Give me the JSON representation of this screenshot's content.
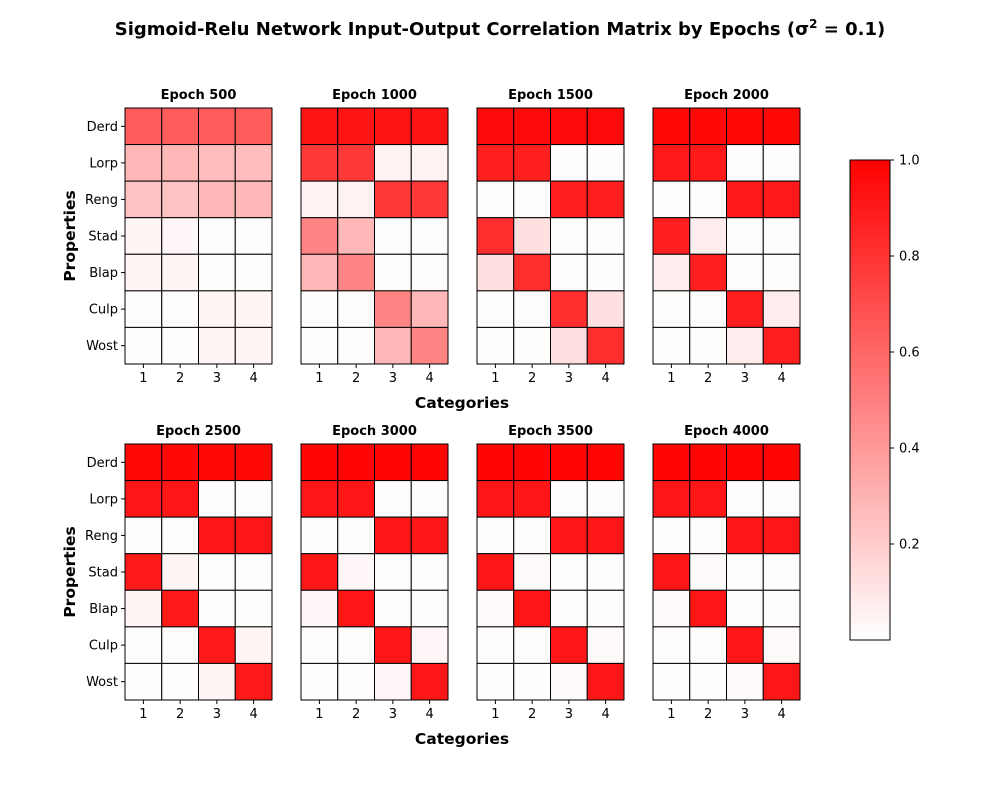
{
  "colors": {
    "low": "#ffffff",
    "high": "#ff0000",
    "grid": "#000000"
  },
  "chart_data": {
    "type": "heatmap",
    "title_main": "Sigmoid-Relu Network Input-Output Correlation Matrix by Epochs (σ",
    "title_sup": "2",
    "title_end": " = 0.1)",
    "xlabel": "Categories",
    "ylabel": "Properties",
    "x_categories": [
      "1",
      "2",
      "3",
      "4"
    ],
    "y_categories": [
      "Derd",
      "Lorp",
      "Reng",
      "Stad",
      "Blap",
      "Culp",
      "Wost"
    ],
    "colorbar": {
      "min": 0.0,
      "max": 1.0,
      "ticks": [
        "0.2",
        "0.4",
        "0.6",
        "0.8",
        "1.0"
      ],
      "tick_values": [
        0.2,
        0.4,
        0.6,
        0.8,
        1.0
      ]
    },
    "panels": [
      {
        "title": "Epoch 500",
        "values": [
          [
            0.64,
            0.64,
            0.64,
            0.64
          ],
          [
            0.28,
            0.28,
            0.26,
            0.26
          ],
          [
            0.24,
            0.24,
            0.28,
            0.28
          ],
          [
            0.04,
            0.03,
            0.01,
            0.01
          ],
          [
            0.04,
            0.04,
            0.01,
            0.01
          ],
          [
            0.01,
            0.01,
            0.04,
            0.04
          ],
          [
            0.01,
            0.01,
            0.04,
            0.04
          ]
        ]
      },
      {
        "title": "Epoch 1000",
        "values": [
          [
            0.92,
            0.92,
            0.92,
            0.92
          ],
          [
            0.78,
            0.78,
            0.05,
            0.05
          ],
          [
            0.05,
            0.05,
            0.78,
            0.78
          ],
          [
            0.48,
            0.28,
            0.01,
            0.01
          ],
          [
            0.28,
            0.48,
            0.01,
            0.01
          ],
          [
            0.01,
            0.01,
            0.48,
            0.28
          ],
          [
            0.01,
            0.01,
            0.28,
            0.48
          ]
        ]
      },
      {
        "title": "Epoch 1500",
        "values": [
          [
            0.96,
            0.96,
            0.96,
            0.96
          ],
          [
            0.88,
            0.88,
            0.01,
            0.01
          ],
          [
            0.01,
            0.01,
            0.88,
            0.88
          ],
          [
            0.82,
            0.12,
            0.01,
            0.01
          ],
          [
            0.12,
            0.82,
            0.01,
            0.01
          ],
          [
            0.01,
            0.01,
            0.82,
            0.12
          ],
          [
            0.01,
            0.01,
            0.12,
            0.82
          ]
        ]
      },
      {
        "title": "Epoch 2000",
        "values": [
          [
            0.97,
            0.97,
            0.97,
            0.97
          ],
          [
            0.9,
            0.9,
            0.01,
            0.01
          ],
          [
            0.01,
            0.01,
            0.9,
            0.9
          ],
          [
            0.88,
            0.07,
            0.01,
            0.01
          ],
          [
            0.07,
            0.88,
            0.01,
            0.01
          ],
          [
            0.01,
            0.01,
            0.88,
            0.07
          ],
          [
            0.01,
            0.01,
            0.07,
            0.88
          ]
        ]
      },
      {
        "title": "Epoch 2500",
        "values": [
          [
            0.97,
            0.97,
            0.97,
            0.97
          ],
          [
            0.91,
            0.91,
            0.01,
            0.01
          ],
          [
            0.01,
            0.01,
            0.91,
            0.91
          ],
          [
            0.9,
            0.04,
            0.01,
            0.01
          ],
          [
            0.04,
            0.9,
            0.01,
            0.01
          ],
          [
            0.01,
            0.01,
            0.9,
            0.04
          ],
          [
            0.01,
            0.01,
            0.04,
            0.9
          ]
        ]
      },
      {
        "title": "Epoch 3000",
        "values": [
          [
            0.98,
            0.98,
            0.98,
            0.98
          ],
          [
            0.91,
            0.91,
            0.01,
            0.01
          ],
          [
            0.01,
            0.01,
            0.91,
            0.91
          ],
          [
            0.91,
            0.03,
            0.01,
            0.01
          ],
          [
            0.03,
            0.91,
            0.01,
            0.01
          ],
          [
            0.01,
            0.01,
            0.91,
            0.03
          ],
          [
            0.01,
            0.01,
            0.03,
            0.91
          ]
        ]
      },
      {
        "title": "Epoch 3500",
        "values": [
          [
            0.98,
            0.98,
            0.98,
            0.98
          ],
          [
            0.91,
            0.91,
            0.01,
            0.01
          ],
          [
            0.01,
            0.01,
            0.91,
            0.91
          ],
          [
            0.91,
            0.02,
            0.01,
            0.01
          ],
          [
            0.02,
            0.91,
            0.01,
            0.01
          ],
          [
            0.01,
            0.01,
            0.91,
            0.02
          ],
          [
            0.01,
            0.01,
            0.02,
            0.91
          ]
        ]
      },
      {
        "title": "Epoch 4000",
        "values": [
          [
            0.98,
            0.98,
            0.98,
            0.98
          ],
          [
            0.91,
            0.91,
            0.01,
            0.01
          ],
          [
            0.01,
            0.01,
            0.91,
            0.91
          ],
          [
            0.91,
            0.02,
            0.01,
            0.01
          ],
          [
            0.02,
            0.91,
            0.01,
            0.01
          ],
          [
            0.01,
            0.01,
            0.91,
            0.02
          ],
          [
            0.01,
            0.01,
            0.02,
            0.91
          ]
        ]
      }
    ]
  }
}
